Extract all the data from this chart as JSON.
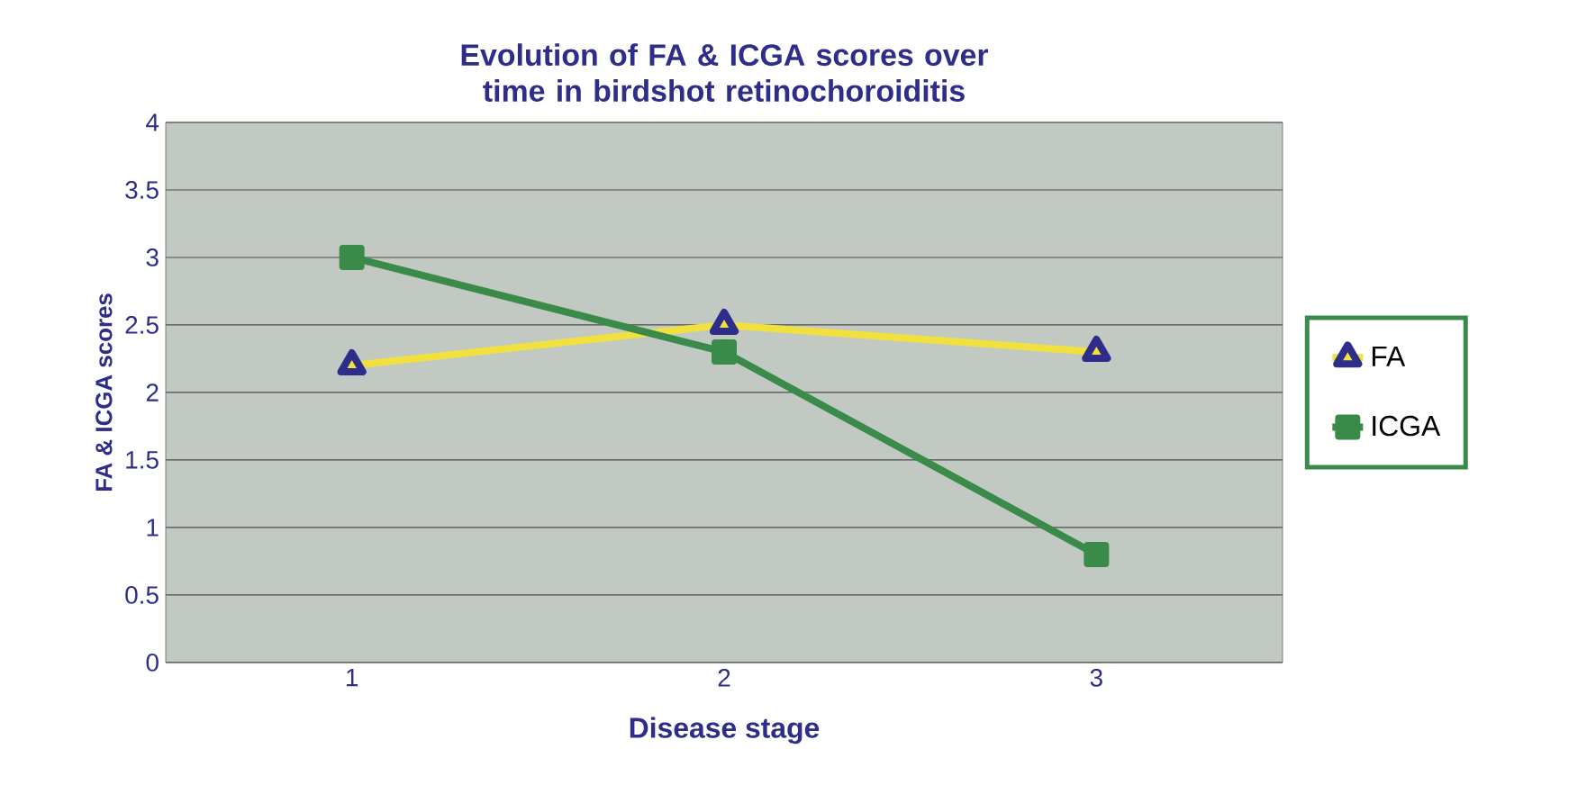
{
  "chart_data": {
    "type": "line",
    "title": "Evolution of FA & ICGA scores over time in birdshot retinochoroiditis",
    "xlabel": "Disease stage",
    "ylabel": "FA & ICGA scores",
    "categories": [
      "1",
      "2",
      "3"
    ],
    "series": [
      {
        "name": "FA",
        "color": "#f0e040",
        "marker": "triangle",
        "values": [
          2.2,
          2.5,
          2.3
        ]
      },
      {
        "name": "ICGA",
        "color": "#3a8a4a",
        "marker": "square",
        "values": [
          3.0,
          2.3,
          0.8
        ]
      }
    ],
    "ylim": [
      0,
      4
    ],
    "yticks": [
      0,
      0.5,
      1,
      1.5,
      2,
      2.5,
      3,
      3.5,
      4
    ],
    "grid": "y",
    "legend": "right"
  }
}
